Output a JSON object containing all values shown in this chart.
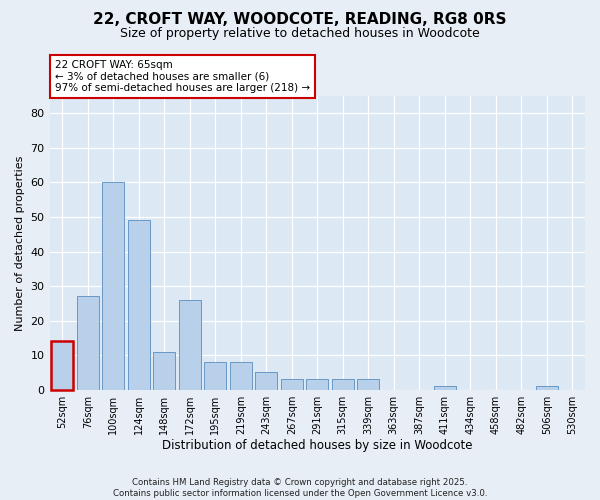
{
  "title": "22, CROFT WAY, WOODCOTE, READING, RG8 0RS",
  "subtitle": "Size of property relative to detached houses in Woodcote",
  "xlabel": "Distribution of detached houses by size in Woodcote",
  "ylabel": "Number of detached properties",
  "categories": [
    "52sqm",
    "76sqm",
    "100sqm",
    "124sqm",
    "148sqm",
    "172sqm",
    "195sqm",
    "219sqm",
    "243sqm",
    "267sqm",
    "291sqm",
    "315sqm",
    "339sqm",
    "363sqm",
    "387sqm",
    "411sqm",
    "434sqm",
    "458sqm",
    "482sqm",
    "506sqm",
    "530sqm"
  ],
  "values": [
    14,
    27,
    60,
    49,
    11,
    26,
    8,
    8,
    5,
    3,
    3,
    3,
    3,
    0,
    0,
    1,
    0,
    0,
    0,
    1,
    0
  ],
  "highlight_bar_index": 0,
  "bar_color": "#b8d0ea",
  "highlight_color": "#cc0000",
  "bar_edge_color": "#5a8ec0",
  "annotation_text": "22 CROFT WAY: 65sqm\n← 3% of detached houses are smaller (6)\n97% of semi-detached houses are larger (218) →",
  "ylim": [
    0,
    85
  ],
  "yticks": [
    0,
    10,
    20,
    30,
    40,
    50,
    60,
    70,
    80
  ],
  "fig_bg": "#e8eef6",
  "plot_bg": "#dce8f4",
  "grid_color": "#ffffff",
  "footer": "Contains HM Land Registry data © Crown copyright and database right 2025.\nContains public sector information licensed under the Open Government Licence v3.0."
}
